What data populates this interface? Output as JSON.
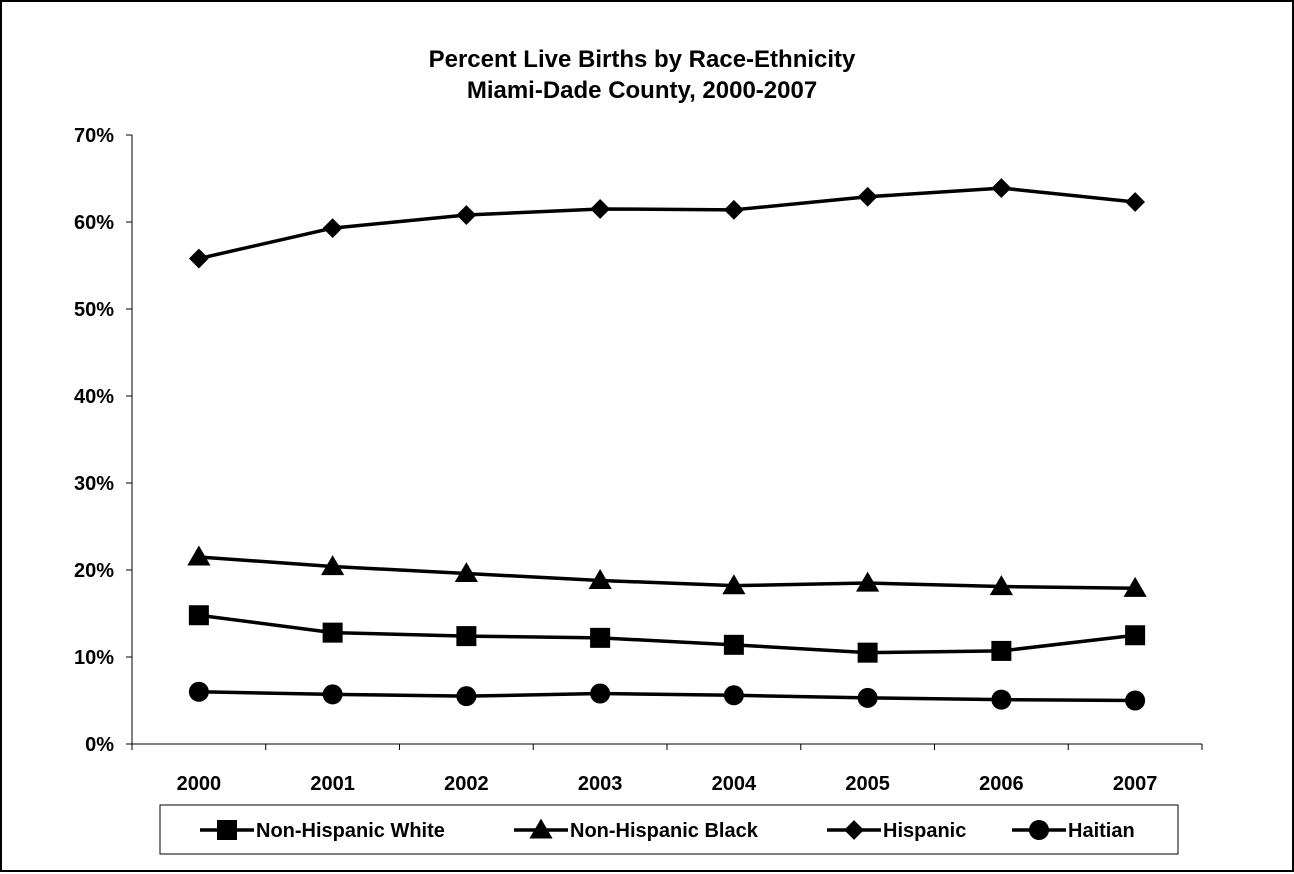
{
  "chart_data": {
    "type": "line",
    "title": "Percent Live Births by Race-Ethnicity",
    "subtitle": "Miami-Dade County, 2000-2007",
    "xlabel": "",
    "ylabel": "",
    "categories": [
      "2000",
      "2001",
      "2002",
      "2003",
      "2004",
      "2005",
      "2006",
      "2007"
    ],
    "ylim": [
      0,
      70
    ],
    "yticks": [
      0,
      10,
      20,
      30,
      40,
      50,
      60,
      70
    ],
    "ytick_labels": [
      "0%",
      "10%",
      "20%",
      "30%",
      "40%",
      "50%",
      "60%",
      "70%"
    ],
    "y_unit": "%",
    "grid": false,
    "legend_position": "bottom",
    "series": [
      {
        "name": "Non-Hispanic White",
        "marker": "square",
        "color": "#000000",
        "values": [
          14.8,
          12.8,
          12.4,
          12.2,
          11.4,
          10.5,
          10.7,
          12.5
        ]
      },
      {
        "name": "Non-Hispanic Black",
        "marker": "triangle",
        "color": "#000000",
        "values": [
          21.5,
          20.4,
          19.6,
          18.8,
          18.2,
          18.5,
          18.1,
          17.9
        ]
      },
      {
        "name": "Hispanic",
        "marker": "diamond",
        "color": "#000000",
        "values": [
          55.8,
          59.3,
          60.8,
          61.5,
          61.4,
          62.9,
          63.9,
          62.3
        ]
      },
      {
        "name": "Haitian",
        "marker": "circle",
        "color": "#000000",
        "values": [
          6.0,
          5.7,
          5.5,
          5.8,
          5.6,
          5.3,
          5.1,
          5.0
        ]
      }
    ]
  }
}
